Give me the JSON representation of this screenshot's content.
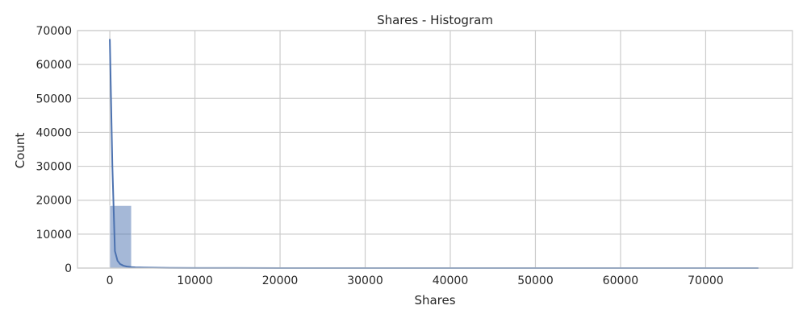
{
  "chart_data": {
    "type": "bar",
    "title": "Shares - Histogram",
    "xlabel": "Shares",
    "ylabel": "Count",
    "xlim": [
      -3800,
      80200
    ],
    "ylim": [
      0,
      70000
    ],
    "xticks": [
      0,
      10000,
      20000,
      30000,
      40000,
      50000,
      60000,
      70000
    ],
    "yticks": [
      0,
      10000,
      20000,
      30000,
      40000,
      50000,
      60000,
      70000
    ],
    "grid": true,
    "bins": [
      {
        "x0": 0,
        "x1": 2540,
        "count": 18400
      },
      {
        "x0": 2540,
        "x1": 5080,
        "count": 380
      },
      {
        "x0": 5080,
        "x1": 7620,
        "count": 120
      },
      {
        "x0": 7620,
        "x1": 10160,
        "count": 40
      },
      {
        "x0": 10160,
        "x1": 12700,
        "count": 15
      },
      {
        "x0": 12700,
        "x1": 15240,
        "count": 8
      },
      {
        "x0": 15240,
        "x1": 17780,
        "count": 5
      },
      {
        "x0": 17780,
        "x1": 20320,
        "count": 3
      },
      {
        "x0": 20320,
        "x1": 22860,
        "count": 2
      },
      {
        "x0": 22860,
        "x1": 25400,
        "count": 2
      },
      {
        "x0": 25400,
        "x1": 27940,
        "count": 1
      },
      {
        "x0": 27940,
        "x1": 30480,
        "count": 1
      },
      {
        "x0": 30480,
        "x1": 33020,
        "count": 1
      },
      {
        "x0": 73660,
        "x1": 76200,
        "count": 1
      }
    ],
    "kde": {
      "x": [
        0,
        300,
        600,
        900,
        1200,
        1600,
        2000,
        2500,
        3000,
        4000,
        5000,
        7000,
        10000,
        15000,
        20000,
        30000,
        40000,
        50000,
        60000,
        70000,
        76200
      ],
      "y": [
        67500,
        30000,
        5000,
        2200,
        1200,
        700,
        450,
        300,
        220,
        150,
        110,
        70,
        40,
        20,
        12,
        8,
        6,
        5,
        4,
        3,
        2
      ]
    },
    "colors": {
      "bar": "#4c72b0",
      "kde": "#4c72b0",
      "grid": "#cccccc",
      "spine": "#cccccc"
    }
  }
}
